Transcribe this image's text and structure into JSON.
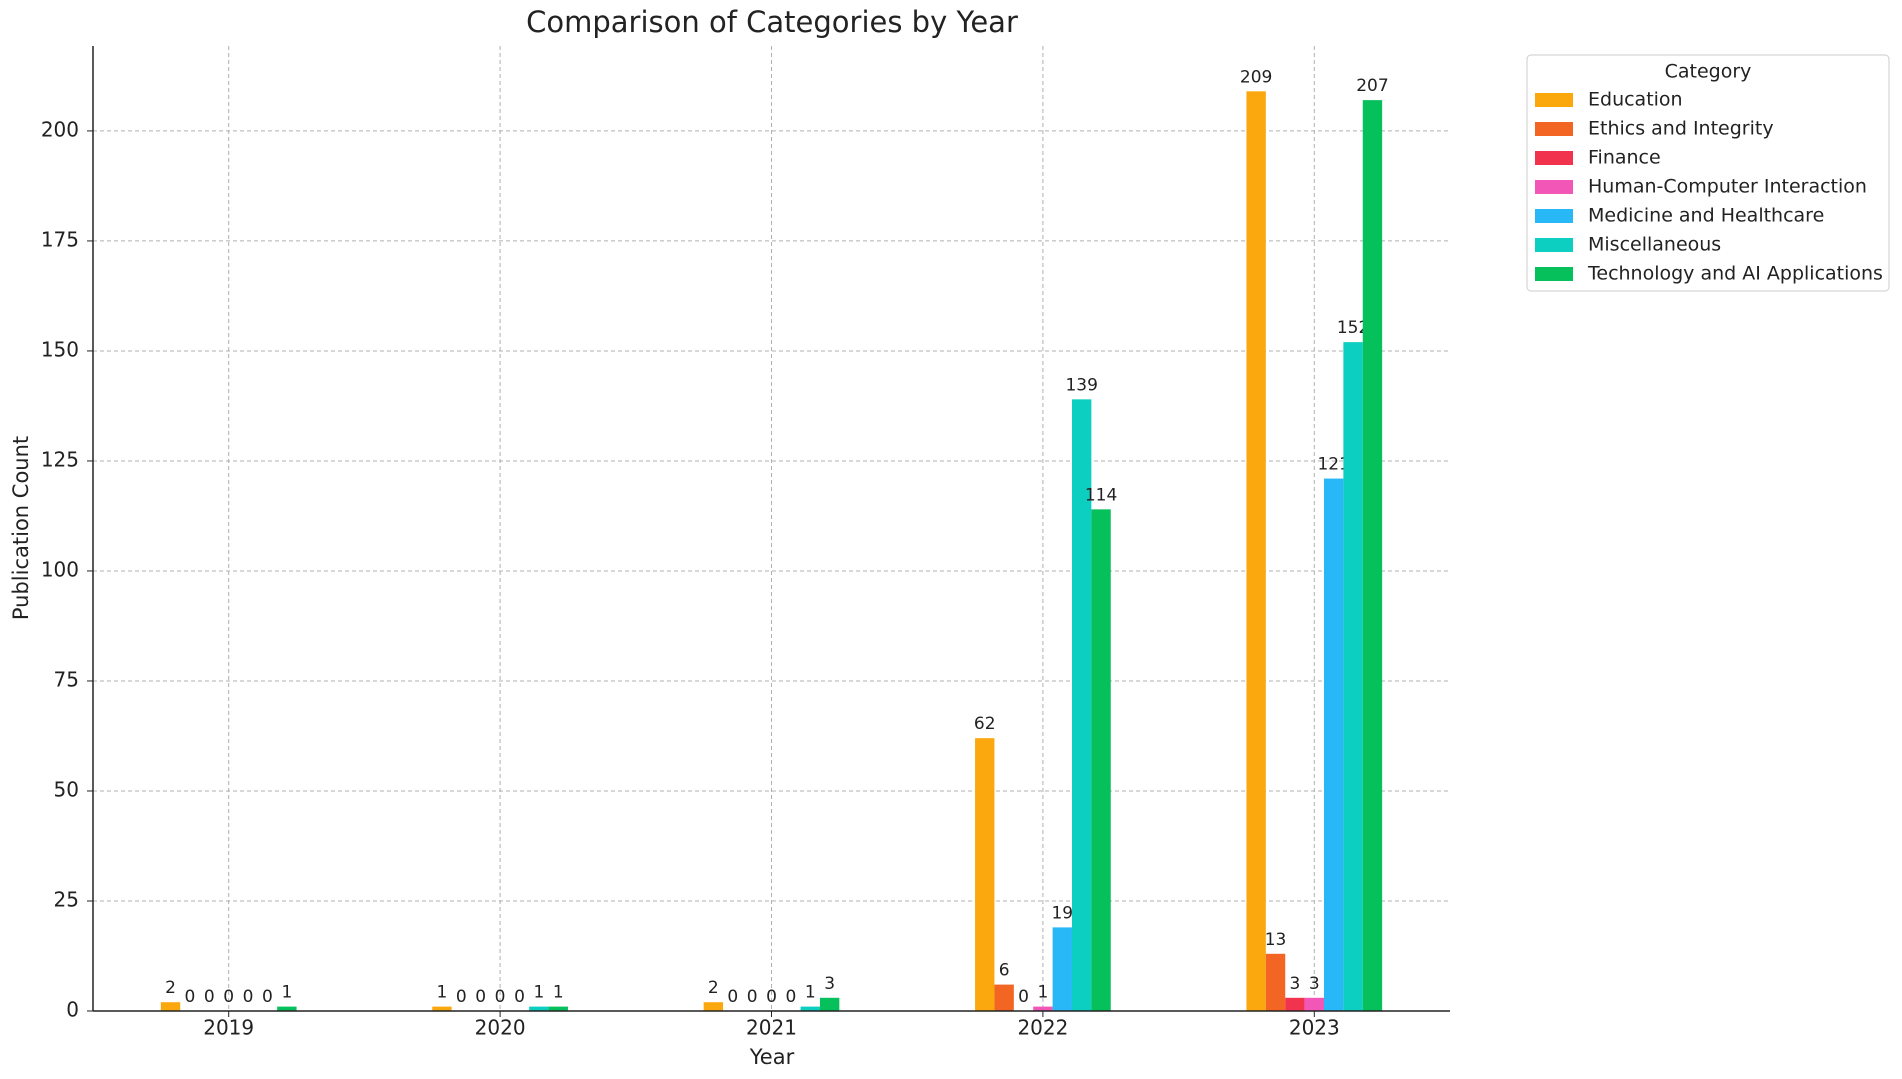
{
  "chart_data": {
    "type": "bar",
    "title": "Comparison of Categories by Year",
    "x_label": "Year",
    "y_label": "Publication Count",
    "categories": [
      "2019",
      "2020",
      "2021",
      "2022",
      "2023"
    ],
    "series": [
      {
        "name": "Education",
        "color": "#fba80f",
        "values": [
          2,
          1,
          2,
          62,
          209
        ]
      },
      {
        "name": "Ethics and Integrity",
        "color": "#f26522",
        "values": [
          0,
          0,
          0,
          6,
          13
        ]
      },
      {
        "name": "Finance",
        "color": "#f2334e",
        "values": [
          0,
          0,
          0,
          0,
          3
        ]
      },
      {
        "name": "Human-Computer Interaction",
        "color": "#f257b8",
        "values": [
          0,
          0,
          0,
          1,
          3
        ]
      },
      {
        "name": "Medicine and Healthcare",
        "color": "#29b8f7",
        "values": [
          0,
          0,
          0,
          19,
          121
        ]
      },
      {
        "name": "Miscellaneous",
        "color": "#0ccfc1",
        "values": [
          0,
          1,
          1,
          139,
          152
        ]
      },
      {
        "name": "Technology and AI Applications",
        "color": "#06c05b",
        "values": [
          1,
          1,
          3,
          114,
          207
        ]
      }
    ],
    "ylim": [
      0,
      219.3
    ],
    "yticks": [
      0,
      25,
      50,
      75,
      100,
      125,
      150,
      175,
      200
    ],
    "grid": true,
    "legend_title": "Category",
    "legend_position": "outside-upper-right"
  }
}
